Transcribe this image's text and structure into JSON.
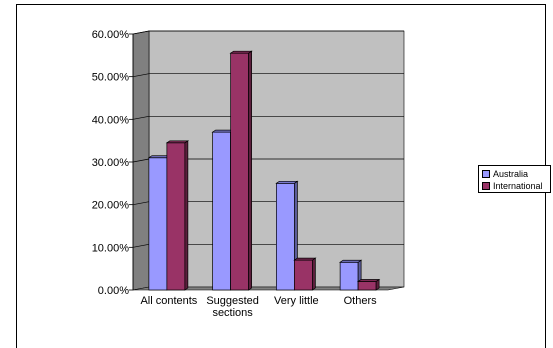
{
  "chart_data": {
    "type": "bar",
    "title": "",
    "xlabel": "",
    "ylabel": "",
    "categories": [
      "All contents",
      "Suggested sections",
      "Very little",
      "Others"
    ],
    "category_lines": [
      [
        "All contents"
      ],
      [
        "Suggested",
        "sections"
      ],
      [
        "Very little"
      ],
      [
        "Others"
      ]
    ],
    "series": [
      {
        "name": "Australia",
        "values": [
          31.0,
          37.0,
          25.0,
          6.5
        ],
        "color": "#9999ff"
      },
      {
        "name": "International",
        "values": [
          34.5,
          55.5,
          7.0,
          2.0
        ],
        "color": "#993366"
      }
    ],
    "ylim": [
      0,
      60
    ],
    "yticks": [
      0,
      10,
      20,
      30,
      40,
      50,
      60
    ],
    "ytick_labels": [
      "0.00%",
      "10.00%",
      "20.00%",
      "30.00%",
      "40.00%",
      "50.00%",
      "60.00%"
    ],
    "grid": true,
    "style_3d": true,
    "legend_position": "right",
    "wall_color": "#c0c0c0"
  }
}
